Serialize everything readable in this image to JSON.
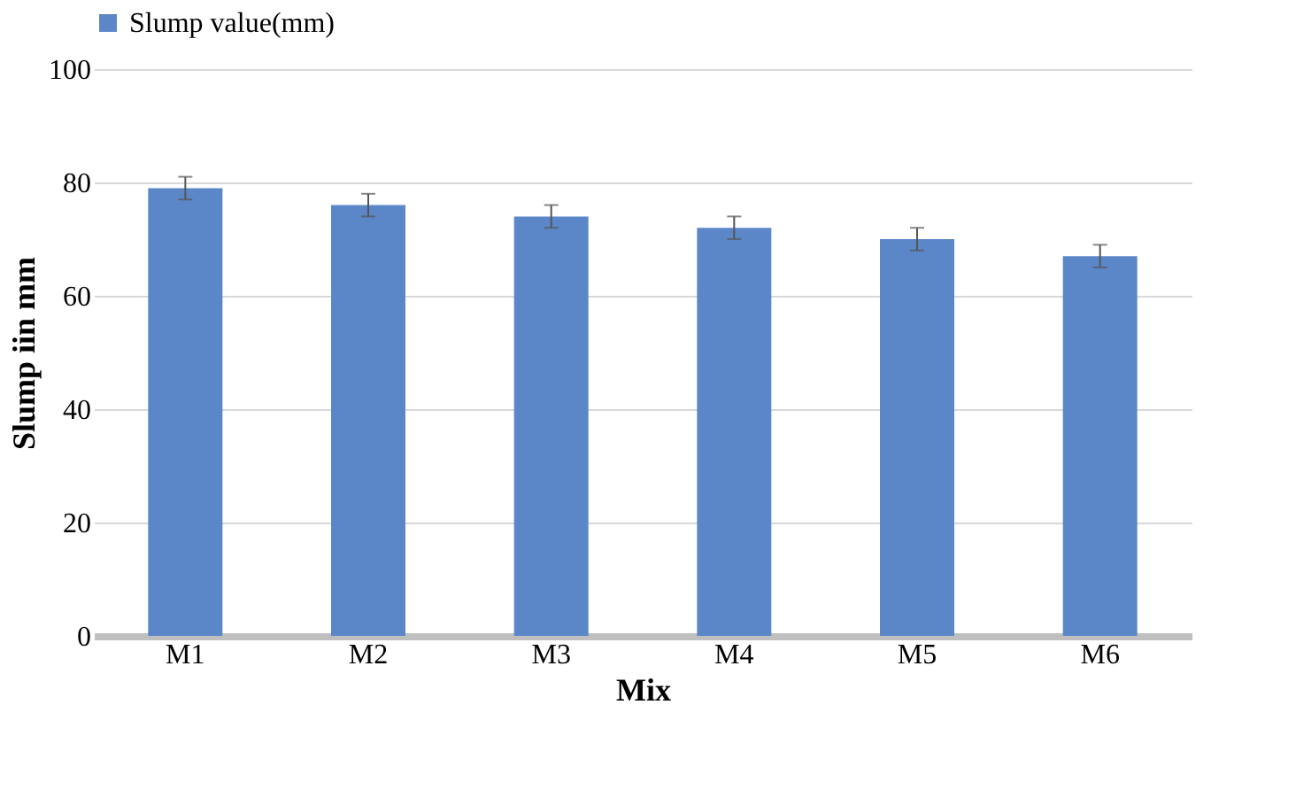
{
  "chart_data": {
    "type": "bar",
    "xlabel": "Mix",
    "ylabel": "Slump iin mm",
    "categories": [
      "M1",
      "M2",
      "M3",
      "M4",
      "M5",
      "M6"
    ],
    "series": [
      {
        "name": "Slump value(mm)",
        "color": "#5b87c9",
        "values": [
          79,
          76,
          74,
          72,
          70,
          67
        ],
        "errors": [
          2,
          2,
          2,
          2,
          2,
          2
        ]
      }
    ],
    "ylim": [
      0,
      100
    ],
    "yticks": [
      0,
      20,
      40,
      60,
      80,
      100
    ],
    "grid": "y",
    "legend": "top"
  }
}
